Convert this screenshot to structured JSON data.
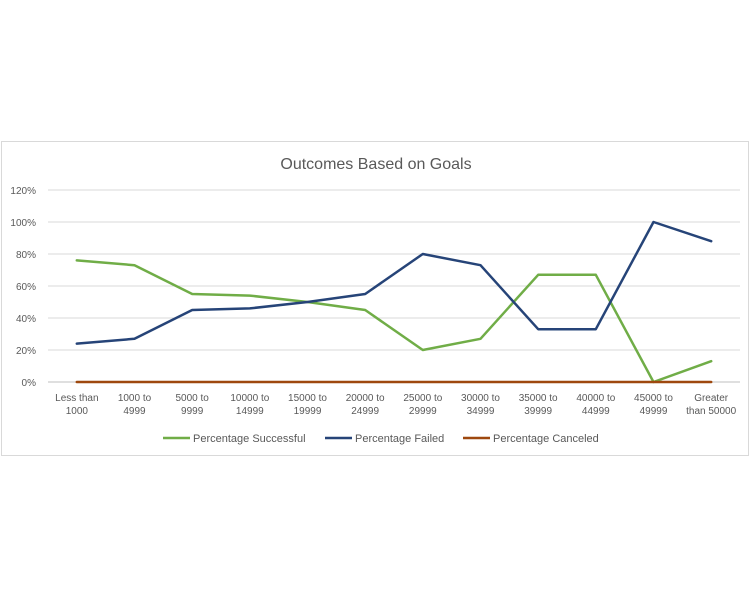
{
  "chart_data": {
    "type": "line",
    "title": "Outcomes Based on Goals",
    "xlabel": "",
    "ylabel": "",
    "categories": [
      [
        "Less than",
        "1000"
      ],
      [
        "1000 to",
        "4999"
      ],
      [
        "5000 to",
        "9999"
      ],
      [
        "10000 to",
        "14999"
      ],
      [
        "15000 to",
        "19999"
      ],
      [
        "20000 to",
        "24999"
      ],
      [
        "25000 to",
        "29999"
      ],
      [
        "30000 to",
        "34999"
      ],
      [
        "35000 to",
        "39999"
      ],
      [
        "40000 to",
        "44999"
      ],
      [
        "45000 to",
        "49999"
      ],
      [
        "Greater",
        "than 50000"
      ]
    ],
    "y_ticks": [
      "0%",
      "20%",
      "40%",
      "60%",
      "80%",
      "100%",
      "120%"
    ],
    "ylim": [
      0,
      120
    ],
    "grid": true,
    "legend_position": "bottom",
    "series": [
      {
        "name": "Percentage Successful",
        "color": "#70ad47",
        "values": [
          76,
          73,
          55,
          54,
          50,
          45,
          20,
          27,
          67,
          67,
          0,
          13
        ]
      },
      {
        "name": "Percentage Failed",
        "color": "#264478",
        "values": [
          24,
          27,
          45,
          46,
          50,
          55,
          80,
          73,
          33,
          33,
          100,
          88
        ]
      },
      {
        "name": "Percentage Canceled",
        "color": "#9e480e",
        "values": [
          0,
          0,
          0,
          0,
          0,
          0,
          0,
          0,
          0,
          0,
          0,
          0
        ]
      }
    ]
  }
}
